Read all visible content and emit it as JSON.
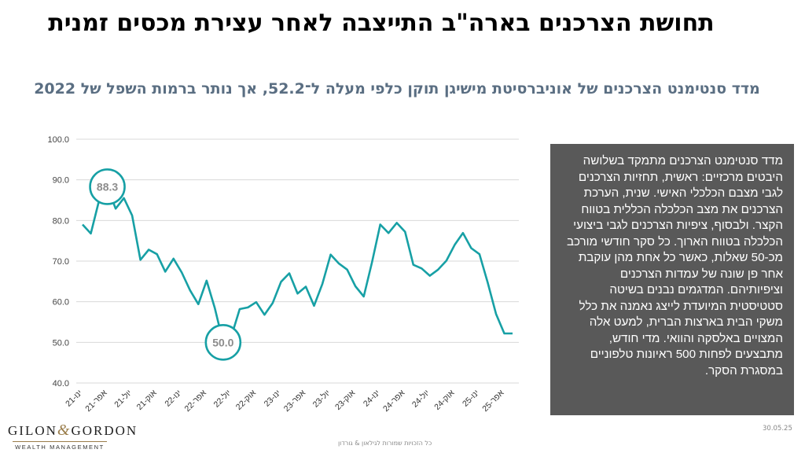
{
  "title": "תחושת הצרכנים בארה\"ב התייצבה לאחר עצירת מכסים זמנית",
  "subtitle": "מדד סנטימנט הצרכנים של אוניברסיטת מישיגן תוקן כלפי מעלה ל־52.2, אך נותר ברמות השפל של 2022",
  "description": "מדד סנטימנט הצרכנים מתמקד בשלושה היבטים מרכזיים: ראשית, תחזיות הצרכנים לגבי מצבם הכלכלי האישי. שנית, הערכת הצרכנים את מצב הכלכלה הכללית בטווח הקצר. ולבסוף, ציפיות הצרכנים לגבי ביצועי הכלכלה בטווח הארוך. כל סקר חודשי מורכב מכ-50 שאלות, כאשר כל אחת מהן עוקבת אחר פן שונה של עמדות הצרכנים וציפיותיהם. המדגמים נבנים בשיטה סטטיסטית המיועדת לייצג נאמנה את כלל משקי הבית בארצות הברית, למעט אלה המצויים באלסקה והוואי. מדי חודש, מתבצעים לפחות 500 ראיונות טלפוניים במסגרת הסקר.",
  "logo": {
    "main_left": "GILON",
    "amp": "&",
    "main_right": "GORDON",
    "sub": "WEALTH MANAGEMENT"
  },
  "footer": "כל הזכויות שמורות לגילאון & גורדון",
  "date": "30.05.25",
  "colors": {
    "line": "#17a0a5",
    "subtitle": "#5a6e82",
    "box": "#595959"
  },
  "chart_data": {
    "type": "line",
    "ylim": [
      40,
      100
    ],
    "yticks": [
      "100.0",
      "90.0",
      "80.0",
      "70.0",
      "60.0",
      "50.0",
      "40.0"
    ],
    "xtick_labels": [
      "ינו-21",
      "אפר-21",
      "יול-21",
      "אוק-21",
      "ינו-22",
      "אפר-22",
      "יול-22",
      "אוק-22",
      "ינו-23",
      "אפר-23",
      "יול-23",
      "אוק-23",
      "ינו-24",
      "אפר-24",
      "יול-24",
      "אוק-24",
      "ינו-25",
      "אפר-25"
    ],
    "values": [
      79.0,
      76.8,
      84.9,
      88.3,
      82.9,
      85.5,
      81.2,
      70.3,
      72.8,
      71.7,
      67.4,
      70.6,
      67.2,
      62.8,
      59.4,
      65.2,
      58.4,
      50.0,
      51.5,
      58.2,
      58.6,
      59.9,
      56.8,
      59.7,
      64.9,
      67.0,
      62.0,
      63.7,
      59.0,
      64.4,
      71.6,
      69.4,
      67.9,
      63.8,
      61.3,
      69.7,
      79.0,
      76.9,
      79.4,
      77.2,
      69.1,
      68.2,
      66.4,
      67.9,
      70.1,
      74.0,
      76.9,
      73.2,
      71.7,
      64.7,
      57.0,
      52.2,
      52.2
    ],
    "annotations": [
      {
        "label": "88.3",
        "index": 3,
        "value": 88.3
      },
      {
        "label": "50.0",
        "index": 17,
        "value": 50.0
      }
    ]
  }
}
